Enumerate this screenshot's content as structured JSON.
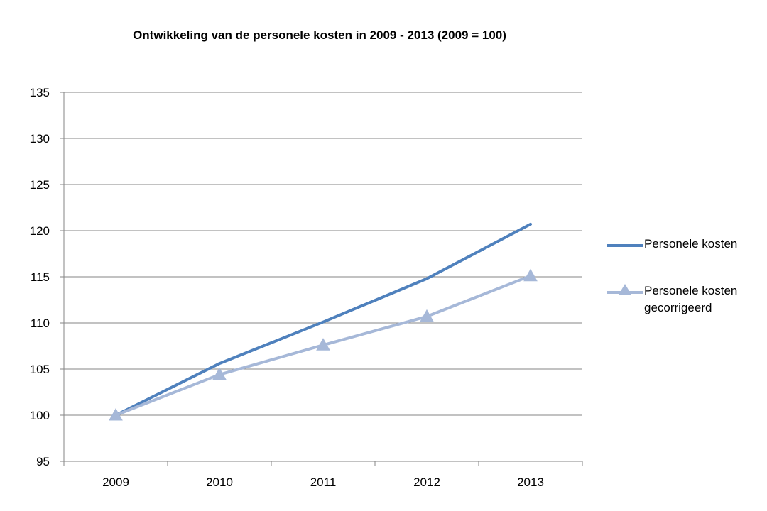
{
  "chart_data": {
    "type": "line",
    "title": "Ontwikkeling van de personele kosten in 2009 - 2013 (2009 = 100)",
    "categories": [
      "2009",
      "2010",
      "2011",
      "2012",
      "2013"
    ],
    "ylim": [
      95,
      135
    ],
    "yticks": [
      95,
      100,
      105,
      110,
      115,
      120,
      125,
      130,
      135
    ],
    "grid": true,
    "legend_position": "right",
    "series": [
      {
        "name": "Personele kosten",
        "values": [
          100,
          105.6,
          110.1,
          114.8,
          120.7
        ],
        "color": "#4f81bd",
        "marker": "none"
      },
      {
        "name": "Personele kosten gecorrigeerd",
        "values": [
          100,
          104.4,
          107.6,
          110.7,
          115.1
        ],
        "color": "#a6b8d8",
        "marker": "triangle"
      }
    ]
  }
}
